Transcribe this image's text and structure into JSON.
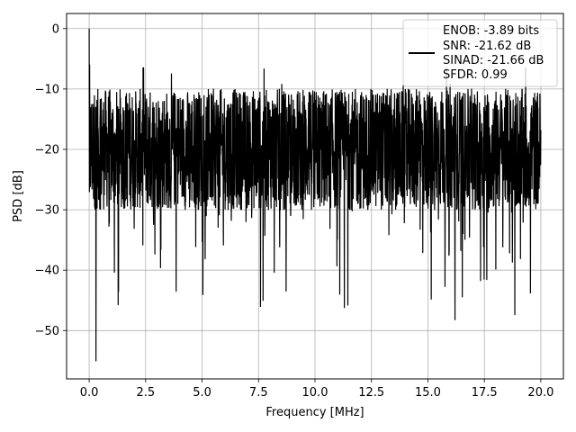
{
  "chart_data": {
    "type": "line",
    "title": "",
    "xlabel": "Frequency [MHz]",
    "ylabel": "PSD [dB]",
    "xlim": [
      -1.0,
      21.0
    ],
    "ylim": [
      -58,
      2.5
    ],
    "x_ticks": [
      0.0,
      2.5,
      5.0,
      7.5,
      10.0,
      12.5,
      15.0,
      17.5,
      20.0
    ],
    "x_tick_labels": [
      "0.0",
      "2.5",
      "5.0",
      "7.5",
      "10.0",
      "12.5",
      "15.0",
      "17.5",
      "20.0"
    ],
    "y_ticks": [
      0,
      -10,
      -20,
      -30,
      -40,
      -50
    ],
    "y_tick_labels": [
      "0",
      "−10",
      "−20",
      "−30",
      "−40",
      "−50"
    ],
    "grid": true,
    "legend_position": "top-right",
    "legend_lines": [
      "ENOB: -3.89 bits",
      "SNR: -21.62 dB",
      "SINAD: -21.66 dB",
      "SFDR: 0.99"
    ],
    "series": [
      {
        "color": "#000000",
        "x_range": [
          0.0,
          20.0
        ],
        "noise_floor_db": -20,
        "typical_band_db": [
          -30,
          -10
        ],
        "peak": {
          "x": 0.0,
          "y": 0.0
        },
        "notable_minima": [
          {
            "x": 0.3,
            "y": -55.0
          },
          {
            "x": 16.2,
            "y": -48.2
          },
          {
            "x": 11.3,
            "y": -46.2
          },
          {
            "x": 7.7,
            "y": -45.0
          },
          {
            "x": 1.3,
            "y": -43.5
          }
        ]
      }
    ]
  },
  "colors": {
    "line": "#000000",
    "grid": "#b0b0b0",
    "axes": "#000000",
    "background": "#ffffff"
  }
}
